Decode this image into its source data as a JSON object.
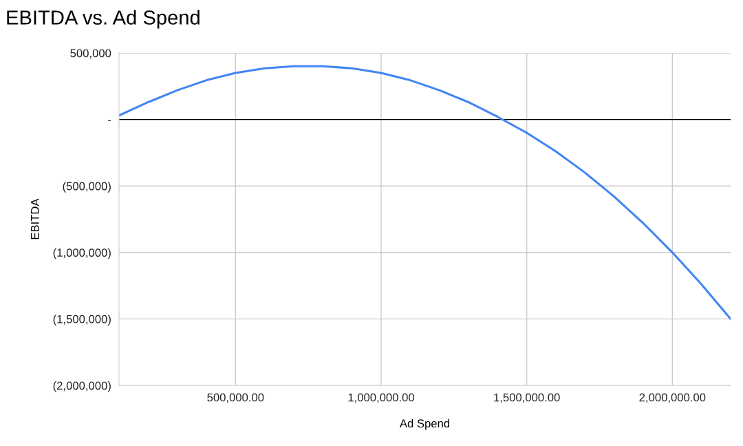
{
  "chart_data": {
    "type": "line",
    "title": "EBITDA vs. Ad Spend",
    "xlabel": "Ad Spend",
    "ylabel": "EBITDA",
    "x": [
      100000,
      200000,
      300000,
      400000,
      500000,
      600000,
      700000,
      800000,
      900000,
      1000000,
      1100000,
      1200000,
      1300000,
      1400000,
      1500000,
      1600000,
      1700000,
      1800000,
      1900000,
      2000000,
      2100000,
      2200000
    ],
    "series": [
      {
        "color": "#4285f4",
        "values": [
          30000,
          130000,
          220000,
          295000,
          350000,
          385000,
          400000,
          400000,
          385000,
          350000,
          295000,
          220000,
          130000,
          20000,
          -100000,
          -240000,
          -400000,
          -580000,
          -780000,
          -1000000,
          -1240000,
          -1500000
        ]
      }
    ],
    "xlim": [
      100000,
      2200000
    ],
    "xticks": [
      {
        "value": 500000,
        "label": "500,000.00"
      },
      {
        "value": 1000000,
        "label": "1,000,000.00"
      },
      {
        "value": 1500000,
        "label": "1,500,000.00"
      },
      {
        "value": 2000000,
        "label": "2,000,000.00"
      }
    ],
    "ylim": [
      -2000000,
      500000
    ],
    "yticks": [
      {
        "value": -2000000,
        "label": "(2,000,000)"
      },
      {
        "value": -1500000,
        "label": "(1,500,000)"
      },
      {
        "value": -1000000,
        "label": "(1,000,000)"
      },
      {
        "value": -500000,
        "label": "(500,000)"
      },
      {
        "value": 0,
        "label": "-"
      },
      {
        "value": 500000,
        "label": "500,000"
      }
    ],
    "ref_lines": [
      {
        "axis": "y",
        "value": 0,
        "color": "#000000"
      }
    ],
    "grid": true,
    "legend": false,
    "marker": "none",
    "line_style": "solid"
  }
}
